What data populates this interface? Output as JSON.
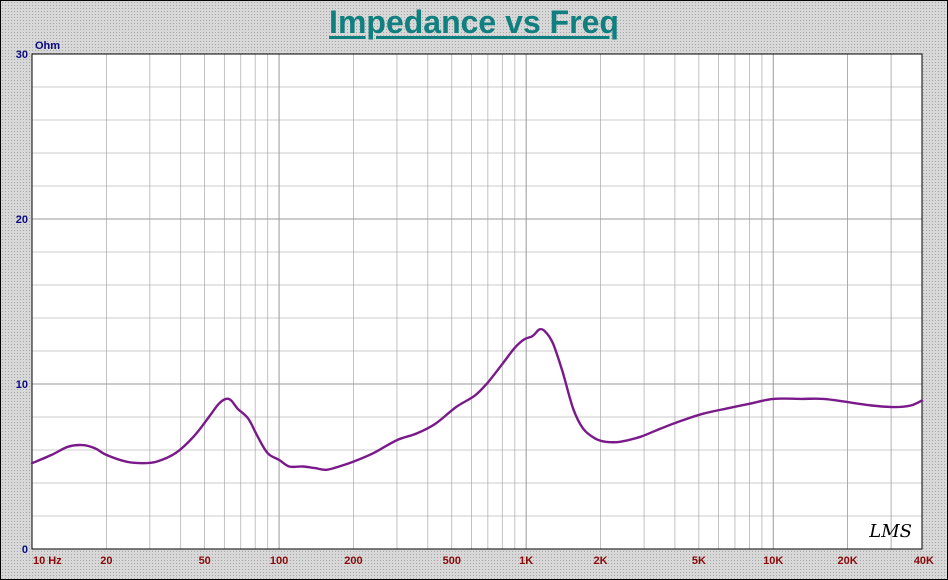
{
  "chart_data": {
    "type": "line",
    "title": "Impedance vs Freq",
    "y_unit_label": "Ohm",
    "xscale": "log",
    "xlim": [
      10,
      40000
    ],
    "ylim": [
      0,
      30
    ],
    "grid": true,
    "x_tick_labels": [
      {
        "value": 10,
        "label": "10 Hz"
      },
      {
        "value": 20,
        "label": "20"
      },
      {
        "value": 50,
        "label": "50"
      },
      {
        "value": 100,
        "label": "100"
      },
      {
        "value": 200,
        "label": "200"
      },
      {
        "value": 500,
        "label": "500"
      },
      {
        "value": 1000,
        "label": "1K"
      },
      {
        "value": 2000,
        "label": "2K"
      },
      {
        "value": 5000,
        "label": "5K"
      },
      {
        "value": 10000,
        "label": "10K"
      },
      {
        "value": 20000,
        "label": "20K"
      },
      {
        "value": 40000,
        "label": "40K"
      }
    ],
    "y_tick_labels": [
      {
        "value": 0,
        "label": "0"
      },
      {
        "value": 10,
        "label": "10"
      },
      {
        "value": 20,
        "label": "20"
      },
      {
        "value": 30,
        "label": "30"
      }
    ],
    "series": [
      {
        "color": "#7a1a8a",
        "points": [
          [
            10,
            5.2
          ],
          [
            12,
            5.7
          ],
          [
            14,
            6.2
          ],
          [
            16,
            6.3
          ],
          [
            18,
            6.1
          ],
          [
            20,
            5.7
          ],
          [
            24,
            5.3
          ],
          [
            28,
            5.2
          ],
          [
            32,
            5.3
          ],
          [
            38,
            5.8
          ],
          [
            45,
            6.8
          ],
          [
            52,
            8.0
          ],
          [
            57,
            8.8
          ],
          [
            61,
            9.1
          ],
          [
            64,
            9.0
          ],
          [
            68,
            8.5
          ],
          [
            75,
            7.9
          ],
          [
            82,
            6.8
          ],
          [
            90,
            5.8
          ],
          [
            100,
            5.4
          ],
          [
            110,
            5.0
          ],
          [
            125,
            5.0
          ],
          [
            140,
            4.9
          ],
          [
            155,
            4.8
          ],
          [
            175,
            5.0
          ],
          [
            200,
            5.3
          ],
          [
            240,
            5.8
          ],
          [
            300,
            6.6
          ],
          [
            360,
            7.0
          ],
          [
            430,
            7.6
          ],
          [
            520,
            8.6
          ],
          [
            620,
            9.3
          ],
          [
            700,
            10.1
          ],
          [
            800,
            11.2
          ],
          [
            900,
            12.2
          ],
          [
            980,
            12.7
          ],
          [
            1060,
            12.9
          ],
          [
            1130,
            13.3
          ],
          [
            1190,
            13.2
          ],
          [
            1280,
            12.5
          ],
          [
            1400,
            10.8
          ],
          [
            1550,
            8.5
          ],
          [
            1700,
            7.3
          ],
          [
            1900,
            6.7
          ],
          [
            2100,
            6.5
          ],
          [
            2400,
            6.5
          ],
          [
            2900,
            6.8
          ],
          [
            3500,
            7.3
          ],
          [
            4300,
            7.8
          ],
          [
            5200,
            8.2
          ],
          [
            6400,
            8.5
          ],
          [
            8000,
            8.8
          ],
          [
            10000,
            9.1
          ],
          [
            13000,
            9.1
          ],
          [
            16000,
            9.1
          ],
          [
            20000,
            8.9
          ],
          [
            25000,
            8.7
          ],
          [
            31000,
            8.6
          ],
          [
            36000,
            8.7
          ],
          [
            40000,
            9.0
          ]
        ]
      }
    ]
  },
  "signature": "LMS",
  "colors": {
    "curve": "#7a1a8a",
    "title": "#0f7f7f",
    "plot_background": "#ffffff",
    "grid": "#9a9a9a"
  }
}
